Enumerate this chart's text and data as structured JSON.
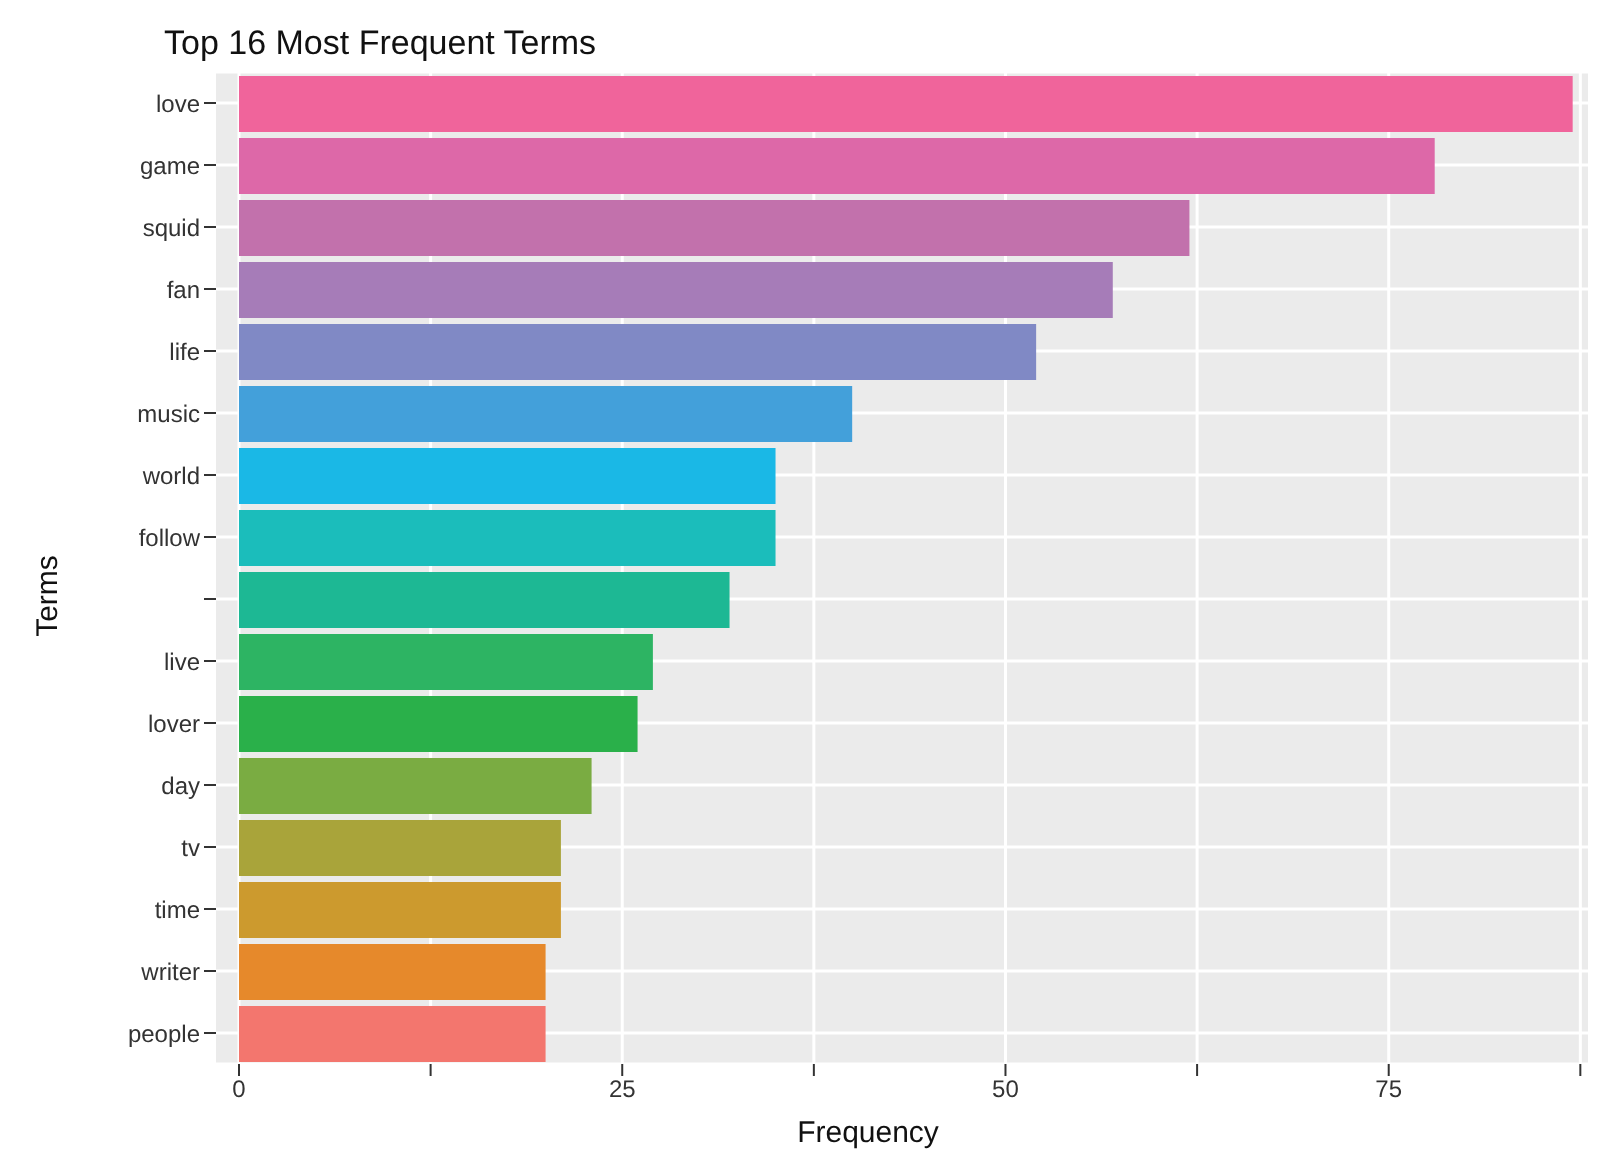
{
  "chart_data": {
    "type": "bar",
    "orientation": "horizontal",
    "title": "Top 16 Most Frequent Terms",
    "xlabel": "Frequency",
    "ylabel": "Terms",
    "categories": [
      "love",
      "game",
      "squid",
      "fan",
      "life",
      "music",
      "world",
      "follow",
      null,
      "live",
      "lover",
      "day",
      "tv",
      "time",
      "writer",
      "people"
    ],
    "values": [
      87,
      78,
      62,
      57,
      52,
      40,
      35,
      35,
      32,
      27,
      26,
      23,
      21,
      21,
      20,
      20
    ],
    "colors": [
      "#f0649b",
      "#dd68a8",
      "#c271ac",
      "#a67cb8",
      "#8089c5",
      "#43a0da",
      "#1ab8e6",
      "#1bbdbb",
      "#1db894",
      "#2db463",
      "#2ab04a",
      "#7aac42",
      "#a9a43a",
      "#cc9a2e",
      "#e6892b",
      "#f3766e"
    ],
    "xlim": [
      -1.5,
      88
    ],
    "xticks": [
      0,
      {
        "value": 12.5,
        "label": null
      },
      25,
      {
        "value": 37.5,
        "label": null
      },
      50,
      {
        "value": 62.5,
        "label": null
      },
      75,
      {
        "value": 87.5,
        "label": null
      }
    ],
    "grid": true
  }
}
